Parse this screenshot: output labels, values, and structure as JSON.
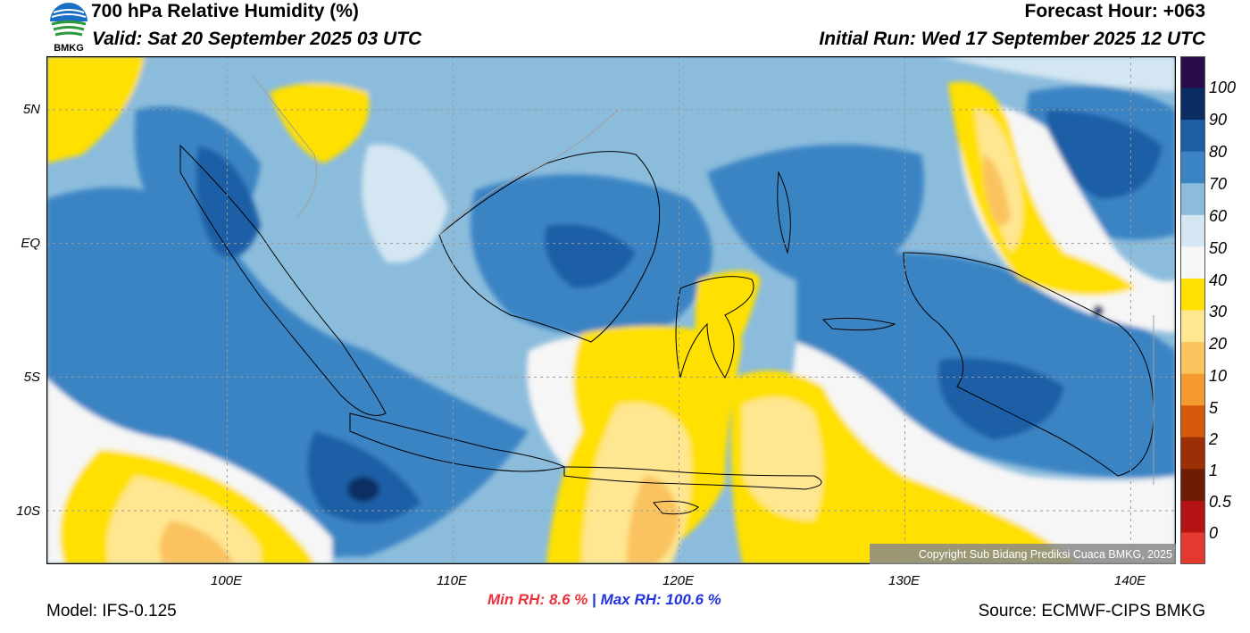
{
  "header": {
    "title": "700 hPa Relative Humidity (%)",
    "valid": "Valid: Sat 20 September 2025 03 UTC",
    "forecast_hour": "Forecast Hour: +063",
    "initial_run": "Initial Run: Wed 17 September 2025 12 UTC"
  },
  "logo": {
    "text": "BMKG",
    "icon": "bmkg-logo-icon"
  },
  "map": {
    "lat_labels": [
      "5N",
      "EQ",
      "5S",
      "10S"
    ],
    "lon_labels": [
      "100E",
      "110E",
      "120E",
      "130E",
      "140E"
    ],
    "extent": {
      "lon_min": 92,
      "lon_max": 142,
      "lat_min": -12,
      "lat_max": 7
    },
    "copyright": "Copyright Sub Bidang Prediksi Cuaca BMKG, 2025",
    "grid_lines": true
  },
  "colorbar": {
    "labels": [
      "100",
      "90",
      "80",
      "70",
      "60",
      "50",
      "40",
      "30",
      "20",
      "10",
      "5",
      "2",
      "1",
      "0.5",
      "0"
    ],
    "colors": [
      "#2a0b4a",
      "#0c2d63",
      "#1e5fa6",
      "#3a84c4",
      "#8cbcdc",
      "#d3e6f1",
      "#f6f6f6",
      "#ffe000",
      "#ffe690",
      "#fbc35e",
      "#f49a2e",
      "#d5590a",
      "#9c2f05",
      "#6e1c03",
      "#b31313",
      "#e4392f"
    ]
  },
  "stats": {
    "min_label": "Min RH:",
    "min_value": "8.6 %",
    "separator": "|",
    "max_label": "Max RH:",
    "max_value": "100.6 %"
  },
  "footer": {
    "model": "Model: IFS-0.125",
    "source": "Source: ECMWF-CIPS BMKG"
  }
}
